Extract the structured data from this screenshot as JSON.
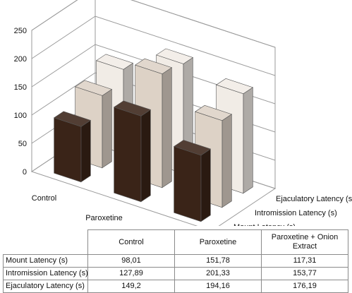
{
  "chart_data": {
    "type": "bar",
    "style": "3d-clustered-depth",
    "categories": [
      "Control",
      "Paroxetine",
      "Paroxetine + Onion Extract"
    ],
    "category_lines": [
      [
        "Control"
      ],
      [
        "Paroxetine"
      ],
      [
        "Paroxetine +",
        "Onion Extract"
      ]
    ],
    "series": [
      {
        "name": "Mount Latency (s)",
        "values": [
          98.01,
          151.78,
          117.31
        ],
        "display": [
          "98,01",
          "151,78",
          "117,31"
        ],
        "color": "#3a2418"
      },
      {
        "name": "Intromission Latency (s)",
        "values": [
          127.89,
          201.33,
          153.77
        ],
        "display": [
          "127,89",
          "201,33",
          "153,77"
        ],
        "color": "#ddd2c6"
      },
      {
        "name": "Ejaculatory Latency (s)",
        "values": [
          149.2,
          194.16,
          176.19
        ],
        "display": [
          "149,2",
          "194,16",
          "176,19"
        ],
        "color": "#f1ece6"
      }
    ],
    "yticks": [
      "0",
      "50",
      "100",
      "150",
      "200",
      "250"
    ],
    "ylim": [
      0,
      250
    ],
    "grid": true,
    "title": "",
    "xlabel": "",
    "ylabel": ""
  },
  "table": {
    "columns": [
      "Control",
      "Paroxetine",
      "Paroxetine + Onion Extract"
    ]
  }
}
